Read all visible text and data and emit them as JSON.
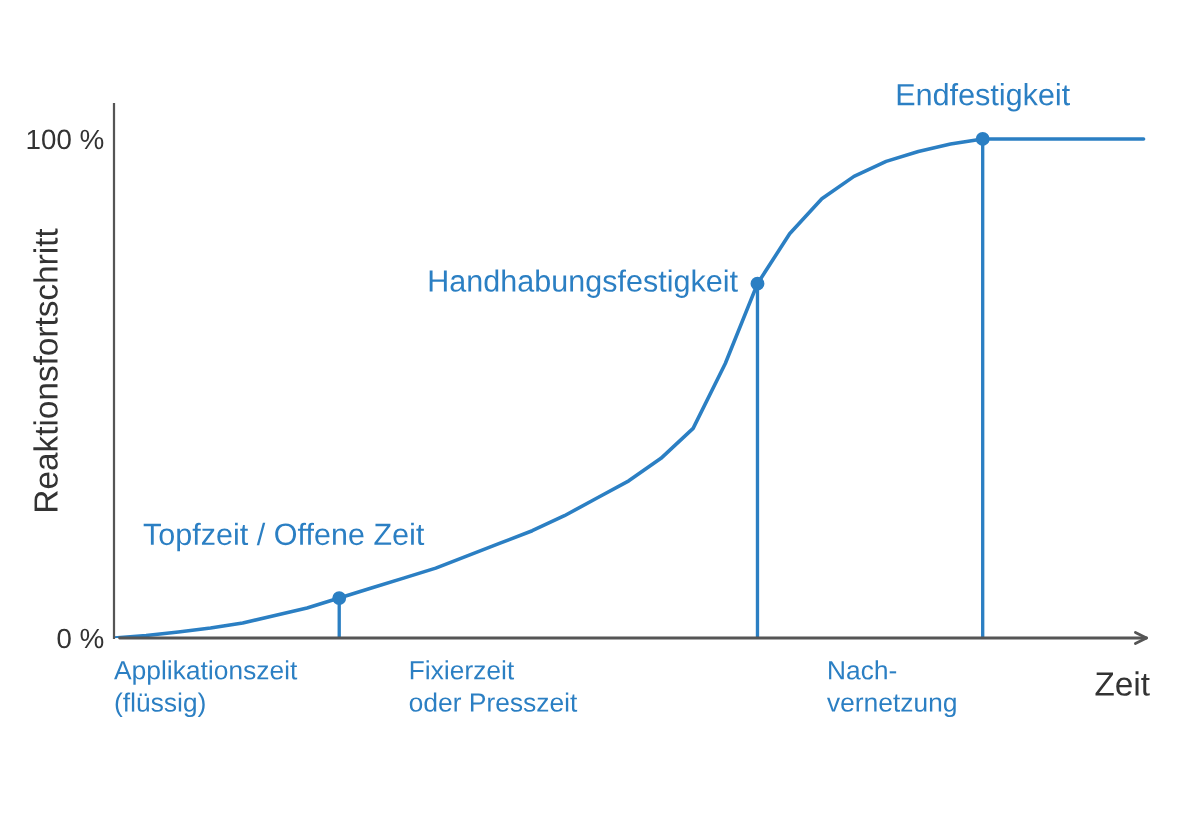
{
  "chart_data": {
    "type": "line",
    "xlabel": "Zeit",
    "ylabel": "Reaktionsfortschritt",
    "categories": [
      null,
      null,
      null,
      null,
      null,
      null,
      null,
      null,
      null,
      null,
      null,
      null,
      null,
      null,
      null,
      null,
      null,
      null,
      null,
      null,
      null,
      null,
      null,
      null,
      null,
      null,
      null,
      null,
      null,
      null,
      null,
      null,
      null
    ],
    "series": [
      {
        "color": "#2b7fc3",
        "values": [
          0,
          0.5,
          1.2,
          2,
          3,
          4.5,
          6,
          8,
          10,
          12,
          14,
          16.5,
          19,
          21.5,
          24.5,
          28,
          31.5,
          36,
          42,
          55,
          71,
          81,
          88,
          92.5,
          95.5,
          97.5,
          99,
          100,
          100,
          100,
          100,
          100,
          100
        ]
      },
      {
        "type": "lollipop",
        "marker": "circle",
        "color": "#2b7fc3",
        "values": [
          null,
          null,
          null,
          null,
          null,
          null,
          null,
          8,
          null,
          null,
          null,
          null,
          null,
          null,
          null,
          null,
          null,
          null,
          null,
          null,
          71,
          null,
          null,
          null,
          null,
          null,
          null,
          100,
          null,
          null,
          null,
          null,
          null
        ]
      }
    ],
    "ylim": [
      0,
      107
    ],
    "yticks": [
      {
        "value": 0,
        "label": "0 %"
      },
      {
        "value": 100,
        "label": "100 %"
      }
    ],
    "tick_labels": "y",
    "grid": false,
    "legend": false,
    "annotations": [
      "Topfzeit / Offene Zeit",
      "Handhabungsfestigkeit",
      "Endfestigkeit",
      "Applikationszeit\n(flüssig)",
      "Fixierzeit\noder Presszeit",
      "Nach-\nvernetzung"
    ]
  }
}
